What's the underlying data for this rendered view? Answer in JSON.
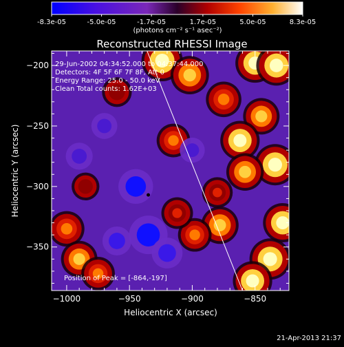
{
  "colorbar": {
    "tick_labels": [
      "-8.3e-05",
      "-5.0e-05",
      "-1.7e-05",
      "1.7e-05",
      "5.0e-05",
      "8.3e-05"
    ],
    "units": "(photons cm⁻² s⁻¹ asec⁻²)",
    "range": [
      -8.3e-05,
      8.3e-05
    ]
  },
  "plot": {
    "title": "Reconstructed RHESSI Image",
    "annotations": [
      "29-Jun-2002 04:34:52.000 to 04:37:44.000",
      "Detectors: 4F 5F 6F 7F 8F, Att 0",
      "Energy Range: 25.0 - 50.0 keV",
      "Clean     Total counts: 1.62E+03"
    ],
    "peak_label": "Position of Peak = [-864,-197]",
    "timestamp": "21-Apr-2013 21:37"
  },
  "chart_data": {
    "type": "heatmap",
    "title": "Reconstructed RHESSI Image",
    "xlabel": "Heliocentric X (arcsec)",
    "ylabel": "Heliocentric Y (arcsec)",
    "xlim": [
      -1012,
      -823
    ],
    "ylim": [
      -386,
      -188
    ],
    "x_ticks": [
      -1000,
      -950,
      -900,
      -850
    ],
    "y_ticks": [
      -200,
      -250,
      -300,
      -350
    ],
    "x_tick_labels": [
      "−1000",
      "−950",
      "−900",
      "−850"
    ],
    "y_tick_labels": [
      "−200",
      "−250",
      "−300",
      "−350"
    ],
    "colormap": [
      "#0000ff",
      "#5a1fbf",
      "#8a30a8",
      "#400040",
      "#b00000",
      "#ff5a00",
      "#ffb030",
      "#ffff80",
      "#ffffff"
    ],
    "peak_position": [
      -864,
      -197
    ],
    "limb_line": [
      [
        -936,
        -188
      ],
      [
        -860,
        -386
      ]
    ],
    "marker": [
      -935,
      -307
    ],
    "blobs": [
      {
        "x": -924,
        "y": -196,
        "v": 1.0
      },
      {
        "x": -902,
        "y": -208,
        "v": 0.85
      },
      {
        "x": -850,
        "y": -198,
        "v": 0.9
      },
      {
        "x": -833,
        "y": -200,
        "v": 0.95
      },
      {
        "x": -875,
        "y": -228,
        "v": 0.7
      },
      {
        "x": -845,
        "y": -242,
        "v": 0.75
      },
      {
        "x": -862,
        "y": -262,
        "v": 0.9
      },
      {
        "x": -834,
        "y": -282,
        "v": 1.0
      },
      {
        "x": -858,
        "y": -288,
        "v": 0.8
      },
      {
        "x": -915,
        "y": -262,
        "v": 0.6
      },
      {
        "x": -828,
        "y": -330,
        "v": 0.9
      },
      {
        "x": -838,
        "y": -360,
        "v": 1.0
      },
      {
        "x": -852,
        "y": -378,
        "v": 0.9
      },
      {
        "x": -878,
        "y": -332,
        "v": 0.8
      },
      {
        "x": -898,
        "y": -340,
        "v": 0.6
      },
      {
        "x": -912,
        "y": -322,
        "v": 0.5
      },
      {
        "x": -1000,
        "y": -335,
        "v": 0.7
      },
      {
        "x": -990,
        "y": -360,
        "v": 0.75
      },
      {
        "x": -975,
        "y": -372,
        "v": 0.6
      },
      {
        "x": -880,
        "y": -305,
        "v": 0.45
      },
      {
        "x": -960,
        "y": -222,
        "v": 0.4
      },
      {
        "x": -985,
        "y": -300,
        "v": 0.3
      },
      {
        "x": -945,
        "y": -300,
        "v": -0.8
      },
      {
        "x": -935,
        "y": -340,
        "v": -1.0
      },
      {
        "x": -920,
        "y": -355,
        "v": -0.6
      },
      {
        "x": -990,
        "y": -275,
        "v": -0.4
      },
      {
        "x": -970,
        "y": -250,
        "v": -0.35
      },
      {
        "x": -900,
        "y": -270,
        "v": -0.3
      },
      {
        "x": -960,
        "y": -345,
        "v": -0.5
      }
    ]
  }
}
